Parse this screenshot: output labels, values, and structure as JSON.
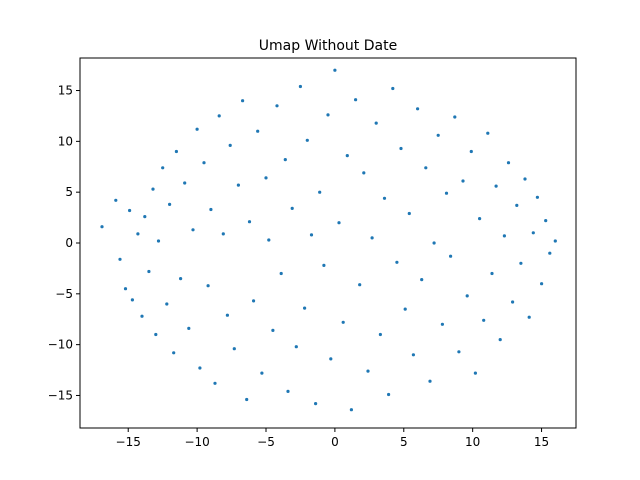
{
  "chart_data": {
    "type": "scatter",
    "title": "Umap Without Date",
    "xlabel": "",
    "ylabel": "",
    "xlim": [
      -18.5,
      17.5
    ],
    "ylim": [
      -18.2,
      18.2
    ],
    "xticks": [
      -15,
      -10,
      -5,
      0,
      5,
      10,
      15
    ],
    "yticks": [
      -15,
      -10,
      -5,
      0,
      5,
      10,
      15
    ],
    "xtick_labels": [
      "−15",
      "−10",
      "−5",
      "0",
      "5",
      "10",
      "15"
    ],
    "ytick_labels": [
      "−15",
      "−10",
      "−5",
      "0",
      "5",
      "10",
      "15"
    ],
    "grid": false,
    "legend": "none",
    "point_color": "#1f77b4",
    "series": [
      {
        "values_note_free": true,
        "points": [
          [
            -16.9,
            1.6
          ],
          [
            -15.9,
            4.2
          ],
          [
            -15.6,
            -1.6
          ],
          [
            -15.2,
            -4.5
          ],
          [
            -14.9,
            3.2
          ],
          [
            -14.7,
            -5.6
          ],
          [
            -14.3,
            0.9
          ],
          [
            -14.0,
            -7.2
          ],
          [
            -13.8,
            2.6
          ],
          [
            -13.5,
            -2.8
          ],
          [
            -13.2,
            5.3
          ],
          [
            -13.0,
            -9.0
          ],
          [
            -12.8,
            0.2
          ],
          [
            -12.5,
            7.4
          ],
          [
            -12.2,
            -6.0
          ],
          [
            -12.0,
            3.8
          ],
          [
            -11.7,
            -10.8
          ],
          [
            -11.5,
            9.0
          ],
          [
            -11.2,
            -3.5
          ],
          [
            -10.9,
            5.9
          ],
          [
            -10.6,
            -8.4
          ],
          [
            -10.3,
            1.3
          ],
          [
            -10.0,
            11.2
          ],
          [
            -9.8,
            -12.3
          ],
          [
            -9.5,
            7.9
          ],
          [
            -9.2,
            -4.2
          ],
          [
            -9.0,
            3.3
          ],
          [
            -8.7,
            -13.8
          ],
          [
            -8.4,
            12.5
          ],
          [
            -8.1,
            0.9
          ],
          [
            -7.8,
            -7.1
          ],
          [
            -7.6,
            9.6
          ],
          [
            -7.3,
            -10.4
          ],
          [
            -7.0,
            5.7
          ],
          [
            -6.7,
            14.0
          ],
          [
            -6.4,
            -15.4
          ],
          [
            -6.2,
            2.1
          ],
          [
            -5.9,
            -5.7
          ],
          [
            -5.6,
            11.0
          ],
          [
            -5.3,
            -12.8
          ],
          [
            -5.0,
            6.4
          ],
          [
            -4.8,
            0.3
          ],
          [
            -4.5,
            -8.6
          ],
          [
            -4.2,
            13.5
          ],
          [
            -3.9,
            -3.0
          ],
          [
            -3.6,
            8.2
          ],
          [
            -3.4,
            -14.6
          ],
          [
            -3.1,
            3.4
          ],
          [
            -2.8,
            -10.2
          ],
          [
            -2.5,
            15.4
          ],
          [
            -2.2,
            -6.4
          ],
          [
            -2.0,
            10.1
          ],
          [
            -1.7,
            0.8
          ],
          [
            -1.4,
            -15.8
          ],
          [
            -1.1,
            5.0
          ],
          [
            -0.8,
            -2.2
          ],
          [
            -0.5,
            12.6
          ],
          [
            -0.3,
            -11.4
          ],
          [
            0.0,
            17.0
          ],
          [
            0.3,
            2.0
          ],
          [
            0.6,
            -7.8
          ],
          [
            0.9,
            8.6
          ],
          [
            1.2,
            -16.4
          ],
          [
            1.5,
            14.1
          ],
          [
            1.8,
            -4.1
          ],
          [
            2.1,
            6.9
          ],
          [
            2.4,
            -12.6
          ],
          [
            2.7,
            0.5
          ],
          [
            3.0,
            11.8
          ],
          [
            3.3,
            -9.0
          ],
          [
            3.6,
            4.4
          ],
          [
            3.9,
            -14.9
          ],
          [
            4.2,
            15.2
          ],
          [
            4.5,
            -1.9
          ],
          [
            4.8,
            9.3
          ],
          [
            5.1,
            -6.5
          ],
          [
            5.4,
            2.9
          ],
          [
            5.7,
            -11.0
          ],
          [
            6.0,
            13.2
          ],
          [
            6.3,
            -3.6
          ],
          [
            6.6,
            7.4
          ],
          [
            6.9,
            -13.6
          ],
          [
            7.2,
            0.0
          ],
          [
            7.5,
            10.6
          ],
          [
            7.8,
            -8.0
          ],
          [
            8.1,
            4.9
          ],
          [
            8.4,
            -1.3
          ],
          [
            8.7,
            12.4
          ],
          [
            9.0,
            -10.7
          ],
          [
            9.3,
            6.1
          ],
          [
            9.6,
            -5.2
          ],
          [
            9.9,
            9.0
          ],
          [
            10.2,
            -12.8
          ],
          [
            10.5,
            2.4
          ],
          [
            10.8,
            -7.6
          ],
          [
            11.1,
            10.8
          ],
          [
            11.4,
            -3.0
          ],
          [
            11.7,
            5.6
          ],
          [
            12.0,
            -9.5
          ],
          [
            12.3,
            0.7
          ],
          [
            12.6,
            7.9
          ],
          [
            12.9,
            -5.8
          ],
          [
            13.2,
            3.7
          ],
          [
            13.5,
            -2.0
          ],
          [
            13.8,
            6.3
          ],
          [
            14.1,
            -7.3
          ],
          [
            14.4,
            1.0
          ],
          [
            14.7,
            4.5
          ],
          [
            15.0,
            -4.0
          ],
          [
            15.3,
            2.2
          ],
          [
            15.6,
            -1.0
          ],
          [
            16.0,
            0.2
          ]
        ]
      }
    ]
  }
}
